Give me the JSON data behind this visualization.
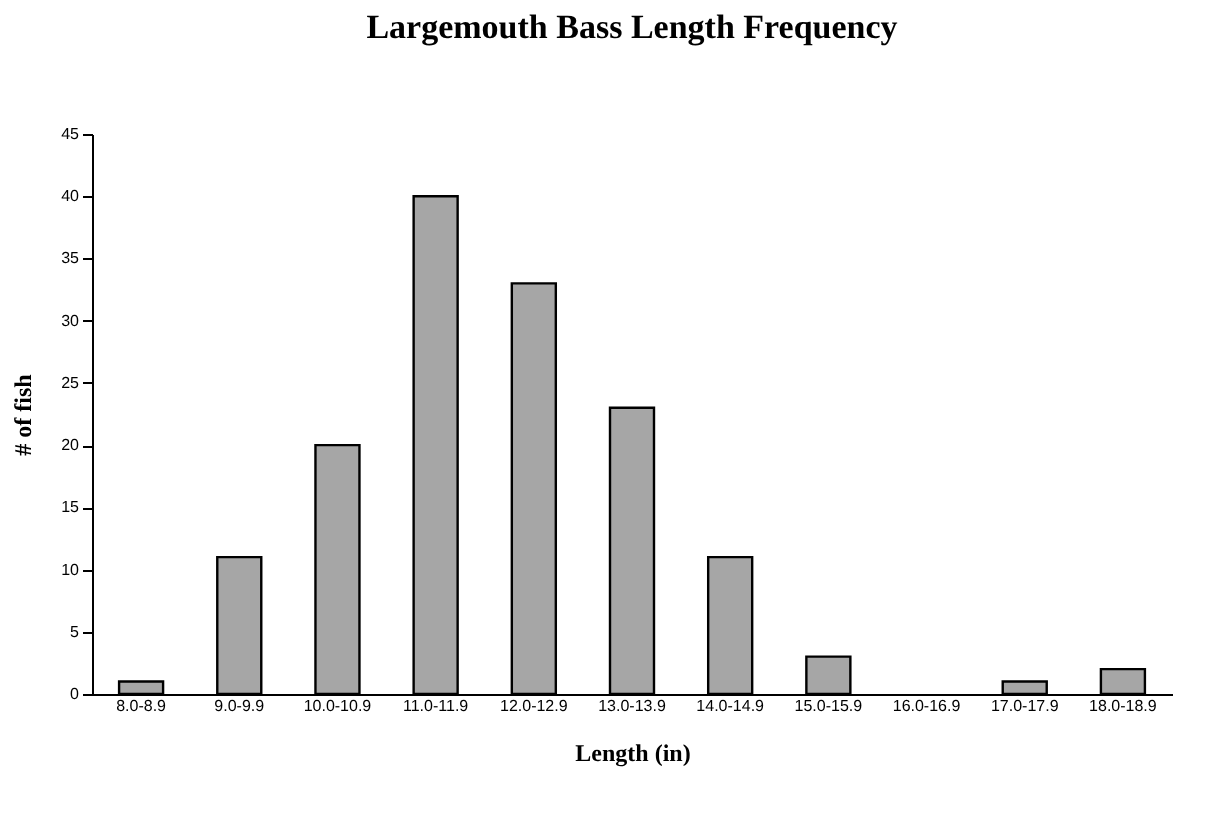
{
  "chart_data": {
    "type": "bar",
    "title": "Largemouth Bass Length Frequency",
    "xlabel": "Length (in)",
    "ylabel": "# of fish",
    "categories": [
      "8.0-8.9",
      "9.0-9.9",
      "10.0-10.9",
      "11.0-11.9",
      "12.0-12.9",
      "13.0-13.9",
      "14.0-14.9",
      "15.0-15.9",
      "16.0-16.9",
      "17.0-17.9",
      "18.0-18.9"
    ],
    "values": [
      1,
      11,
      20,
      40,
      33,
      23,
      11,
      3,
      0,
      1,
      2
    ],
    "color": "#a6a6a6",
    "ylim": [
      0,
      45
    ],
    "yticks": [
      0,
      5,
      10,
      15,
      20,
      25,
      30,
      35,
      40,
      45
    ],
    "grid": false
  }
}
